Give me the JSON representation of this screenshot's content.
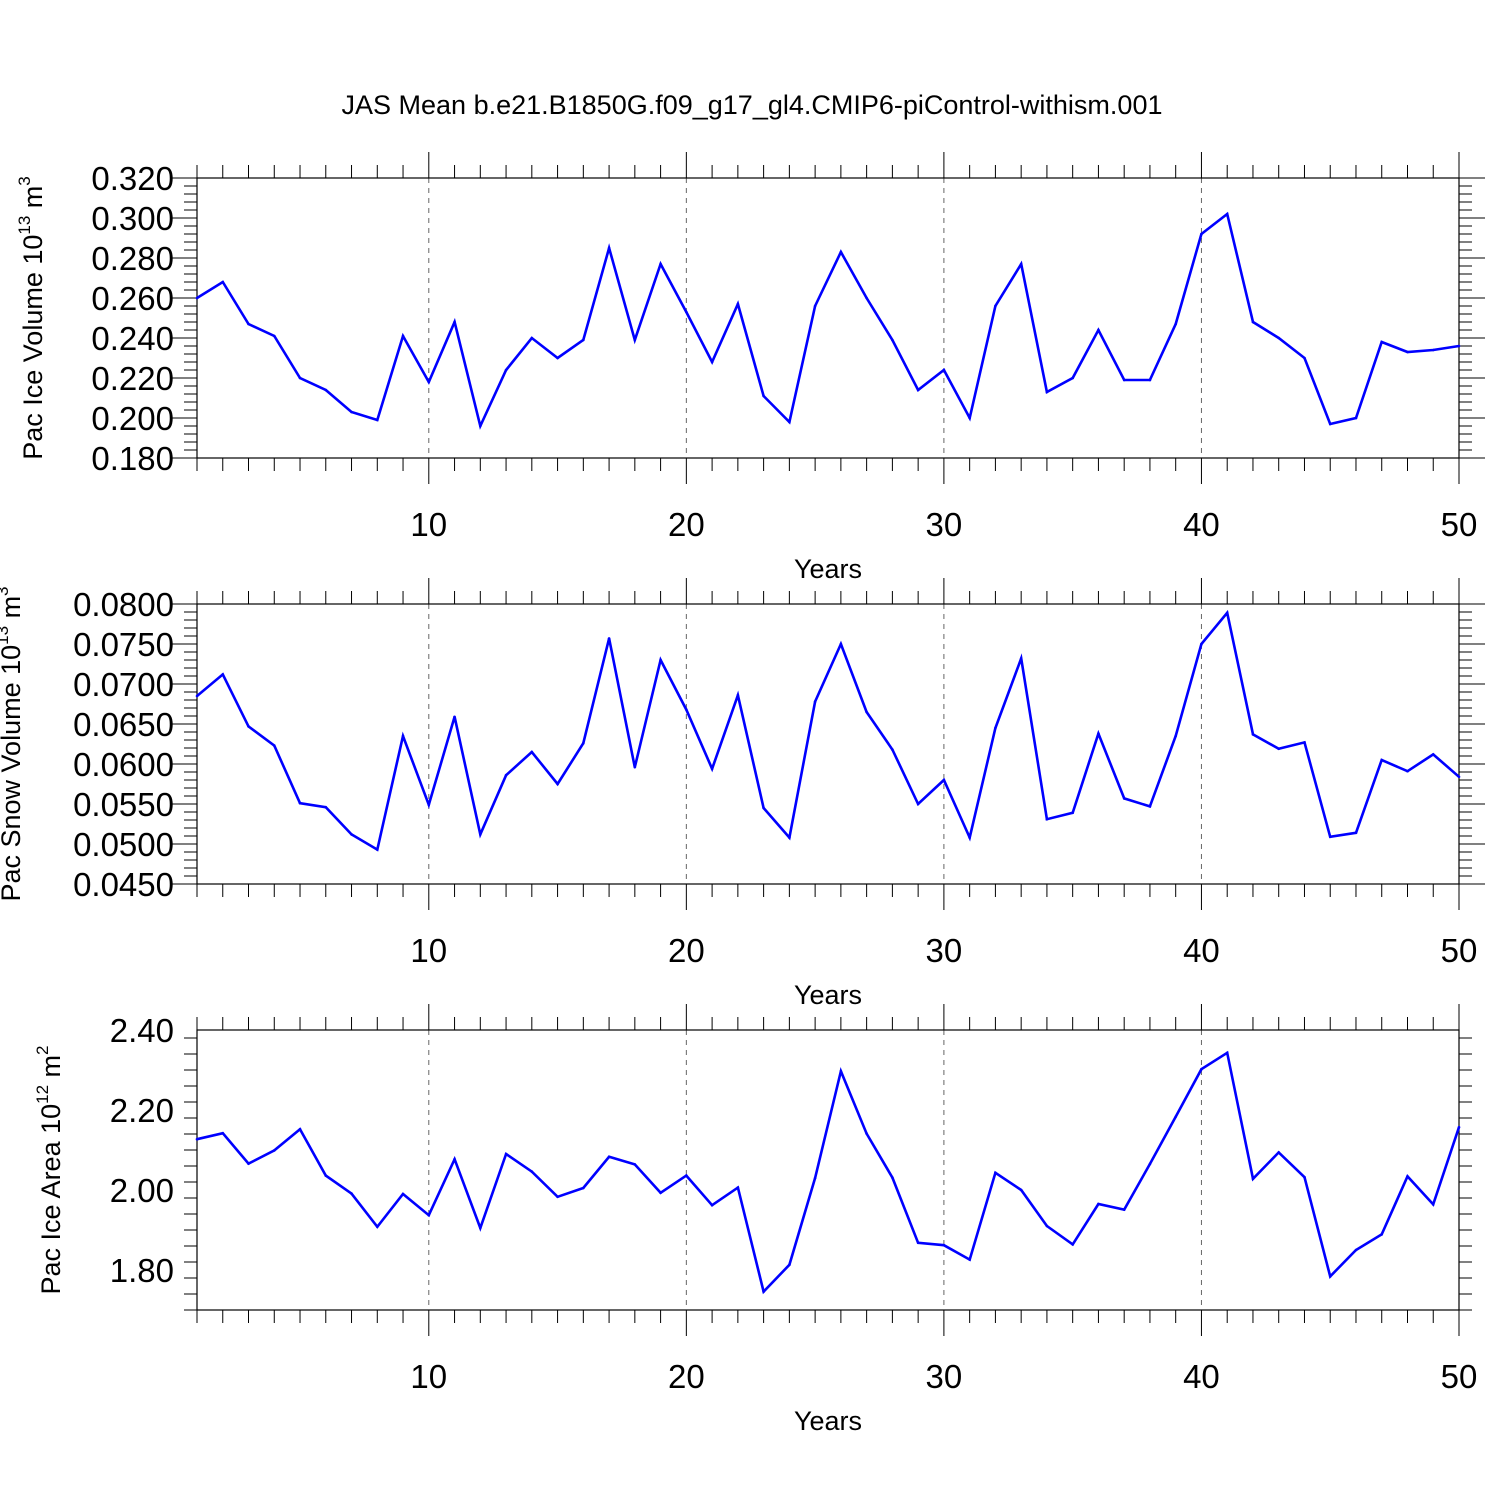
{
  "chart_data": [
    {
      "type": "line",
      "title": "JAS Mean b.e21.B1850G.f09_g17_gl4.CMIP6-piControl-withism.001",
      "ylabel": "Pac Ice Volume 10",
      "ylabel_sup": "13",
      "ylabel_unit": "m",
      "ylabel_unit_sup": "3",
      "xlabel": "Years",
      "xlim": [
        1,
        50
      ],
      "ylim": [
        0.18,
        0.32
      ],
      "xticks": [
        10,
        20,
        30,
        40,
        50
      ],
      "xtick_labels": [
        "10",
        "20",
        "30",
        "40",
        "50"
      ],
      "yticks": [
        0.18,
        0.2,
        0.22,
        0.24,
        0.26,
        0.28,
        0.3,
        0.32
      ],
      "ytick_labels": [
        "0.180",
        "0.200",
        "0.220",
        "0.240",
        "0.260",
        "0.280",
        "0.300",
        "0.320"
      ],
      "grid": "vertical dashed at major x ticks",
      "series": [
        {
          "name": "Pac Ice Volume",
          "color": "#0000ff",
          "x": [
            1,
            2,
            3,
            4,
            5,
            6,
            7,
            8,
            9,
            10,
            11,
            12,
            13,
            14,
            15,
            16,
            17,
            18,
            19,
            20,
            21,
            22,
            23,
            24,
            25,
            26,
            27,
            28,
            29,
            30,
            31,
            32,
            33,
            34,
            35,
            36,
            37,
            38,
            39,
            40,
            41,
            42,
            43,
            44,
            45,
            46,
            47,
            48,
            49,
            50
          ],
          "values": [
            0.26,
            0.268,
            0.247,
            0.241,
            0.22,
            0.214,
            0.203,
            0.199,
            0.241,
            0.218,
            0.248,
            0.196,
            0.224,
            0.24,
            0.23,
            0.239,
            0.285,
            0.239,
            0.277,
            0.253,
            0.228,
            0.257,
            0.211,
            0.198,
            0.256,
            0.283,
            0.26,
            0.239,
            0.214,
            0.224,
            0.2,
            0.256,
            0.277,
            0.213,
            0.22,
            0.244,
            0.219,
            0.219,
            0.247,
            0.292,
            0.302,
            0.248,
            0.24,
            0.23,
            0.197,
            0.2,
            0.238,
            0.233,
            0.234,
            0.236
          ]
        }
      ]
    },
    {
      "type": "line",
      "ylabel": "Pac Snow Volume 10",
      "ylabel_sup": "13",
      "ylabel_unit": "m",
      "ylabel_unit_sup": "3",
      "xlabel": "Years",
      "xlim": [
        1,
        50
      ],
      "ylim": [
        0.045,
        0.08
      ],
      "xticks": [
        10,
        20,
        30,
        40,
        50
      ],
      "xtick_labels": [
        "10",
        "20",
        "30",
        "40",
        "50"
      ],
      "yticks": [
        0.045,
        0.05,
        0.055,
        0.06,
        0.065,
        0.07,
        0.075,
        0.08
      ],
      "ytick_labels": [
        "0.0450",
        "0.0500",
        "0.0550",
        "0.0600",
        "0.0650",
        "0.0700",
        "0.0750",
        "0.0800"
      ],
      "grid": "vertical dashed at major x ticks",
      "series": [
        {
          "name": "Pac Snow Volume",
          "color": "#0000ff",
          "x": [
            1,
            2,
            3,
            4,
            5,
            6,
            7,
            8,
            9,
            10,
            11,
            12,
            13,
            14,
            15,
            16,
            17,
            18,
            19,
            20,
            21,
            22,
            23,
            24,
            25,
            26,
            27,
            28,
            29,
            30,
            31,
            32,
            33,
            34,
            35,
            36,
            37,
            38,
            39,
            40,
            41,
            42,
            43,
            44,
            45,
            46,
            47,
            48,
            49,
            50
          ],
          "values": [
            0.0685,
            0.0712,
            0.0647,
            0.0623,
            0.0551,
            0.0546,
            0.0512,
            0.0493,
            0.0635,
            0.0549,
            0.0659,
            0.0512,
            0.0586,
            0.0615,
            0.0575,
            0.0626,
            0.0757,
            0.0596,
            0.073,
            0.0668,
            0.0594,
            0.0686,
            0.0545,
            0.0508,
            0.0678,
            0.075,
            0.0665,
            0.0618,
            0.055,
            0.058,
            0.0508,
            0.0645,
            0.0732,
            0.0531,
            0.0539,
            0.0638,
            0.0557,
            0.0547,
            0.0635,
            0.075,
            0.0789,
            0.0637,
            0.0619,
            0.0627,
            0.0509,
            0.0514,
            0.0605,
            0.0591,
            0.0612,
            0.0584
          ]
        }
      ]
    },
    {
      "type": "line",
      "ylabel": "Pac Ice Area 10",
      "ylabel_sup": "12",
      "ylabel_unit": "m",
      "ylabel_unit_sup": "2",
      "xlabel": "Years",
      "xlim": [
        1,
        50
      ],
      "ylim": [
        1.7,
        2.4
      ],
      "xticks": [
        10,
        20,
        30,
        40,
        50
      ],
      "xtick_labels": [
        "10",
        "20",
        "30",
        "40",
        "50"
      ],
      "yticks": [
        1.8,
        2.0,
        2.2,
        2.4
      ],
      "ytick_labels": [
        "1.80",
        "2.00",
        "2.20",
        "2.40"
      ],
      "grid": "vertical dashed at major x ticks",
      "series": [
        {
          "name": "Pac Ice Area",
          "color": "#0000ff",
          "x": [
            1,
            2,
            3,
            4,
            5,
            6,
            7,
            8,
            9,
            10,
            11,
            12,
            13,
            14,
            15,
            16,
            17,
            18,
            19,
            20,
            21,
            22,
            23,
            24,
            25,
            26,
            27,
            28,
            29,
            30,
            31,
            32,
            33,
            34,
            35,
            36,
            37,
            38,
            39,
            40,
            41,
            42,
            43,
            44,
            45,
            46,
            47,
            48,
            49,
            50
          ],
          "values": [
            2.127,
            2.142,
            2.066,
            2.099,
            2.152,
            2.036,
            1.991,
            1.908,
            1.99,
            1.937,
            2.077,
            1.905,
            2.09,
            2.046,
            1.983,
            2.005,
            2.083,
            2.064,
            1.993,
            2.036,
            1.962,
            2.006,
            1.746,
            1.813,
            2.03,
            2.297,
            2.141,
            2.031,
            1.868,
            1.862,
            1.826,
            2.043,
            2.0,
            1.91,
            1.864,
            1.965,
            1.951,
            2.065,
            2.183,
            2.302,
            2.343,
            2.028,
            2.094,
            2.032,
            1.784,
            1.85,
            1.889,
            2.034,
            1.964,
            2.157
          ]
        }
      ]
    }
  ]
}
